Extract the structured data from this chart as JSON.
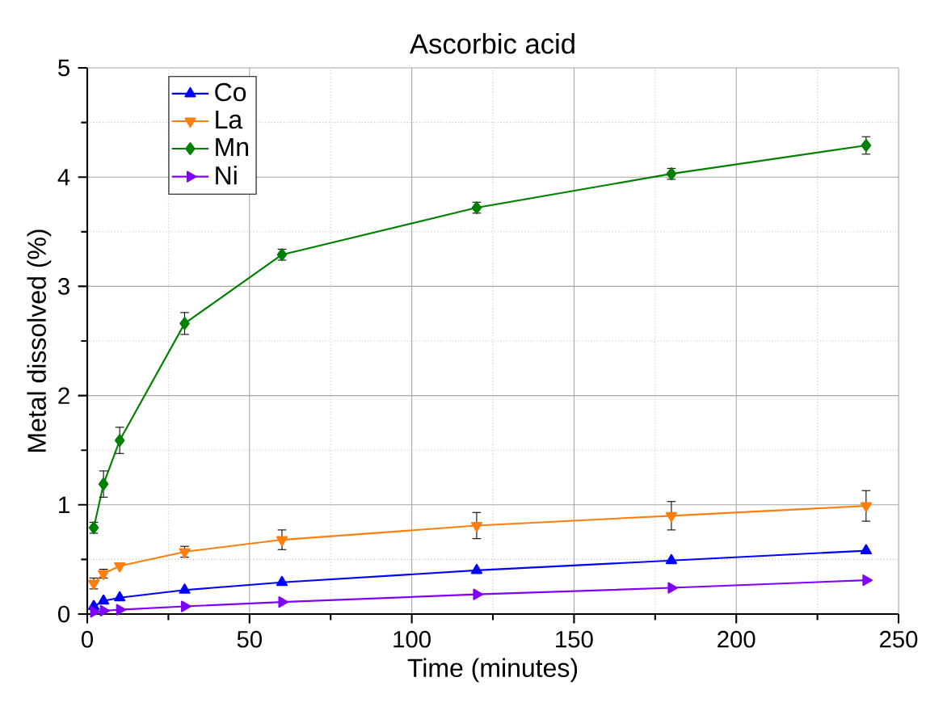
{
  "chart_data": {
    "type": "line",
    "title": "Ascorbic acid",
    "xlabel": "Time (minutes)",
    "ylabel": "Metal dissolved (%)",
    "x": [
      2,
      5,
      10,
      30,
      60,
      120,
      180,
      240
    ],
    "series": [
      {
        "name": "Co",
        "color": "#0000ff",
        "marker": "triangle",
        "values": [
          0.07,
          0.12,
          0.15,
          0.22,
          0.29,
          0.4,
          0.49,
          0.58
        ],
        "line_style": "solid"
      },
      {
        "name": "La",
        "color": "#ff7f0e",
        "marker": "triangle-down",
        "values": [
          0.28,
          0.37,
          0.44,
          0.57,
          0.68,
          0.81,
          0.9,
          0.99
        ],
        "errors": [
          0.05,
          0.04,
          null,
          0.05,
          0.09,
          0.12,
          0.13,
          0.14
        ]
      },
      {
        "name": "Mn",
        "color": "#008000",
        "marker": "diamond",
        "values": [
          0.79,
          1.19,
          1.59,
          2.66,
          3.29,
          3.72,
          4.03,
          4.29
        ],
        "errors": [
          0.05,
          0.12,
          0.12,
          0.1,
          0.05,
          0.05,
          0.05,
          0.08
        ]
      },
      {
        "name": "Ni",
        "color": "#8000ff",
        "marker": "triangle-right",
        "values": [
          0.02,
          0.03,
          0.04,
          0.07,
          0.11,
          0.18,
          0.24,
          0.31
        ],
        "line_style": "solid"
      }
    ],
    "xlim": [
      0,
      250
    ],
    "xticks": [
      0,
      50,
      100,
      150,
      200,
      250
    ],
    "ylim": [
      0,
      5
    ],
    "yticks": [
      0,
      1,
      2,
      3,
      4,
      5
    ],
    "grid": true,
    "legend": "top left",
    "line_style": "solid"
  }
}
